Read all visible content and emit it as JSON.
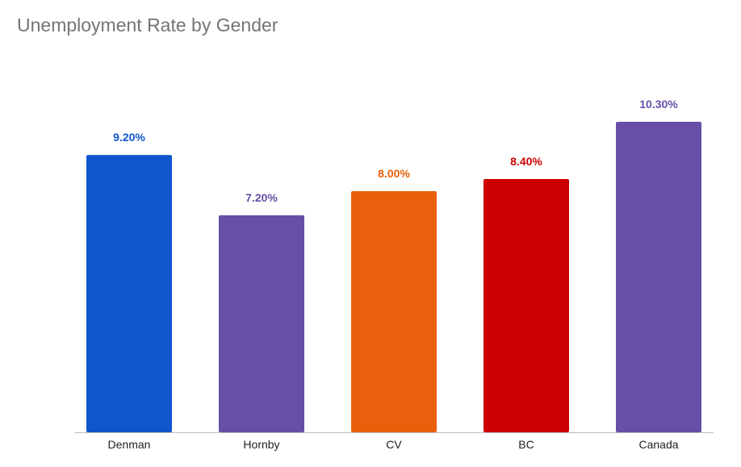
{
  "chart_data": {
    "type": "bar",
    "title": "Unemployment Rate by Gender",
    "xlabel": "",
    "ylabel": "",
    "categories": [
      "Denman",
      "Hornby",
      "CV",
      "BC",
      "Canada"
    ],
    "values": [
      9.2,
      7.2,
      8.0,
      8.4,
      10.3
    ],
    "data_labels": [
      "9.20%",
      "7.20%",
      "8.00%",
      "8.40%",
      "10.30%"
    ],
    "colors": [
      "#1155cc",
      "#674ea7",
      "#e8600b",
      "#cc0000",
      "#674ea7"
    ],
    "ylim": [
      0,
      10.3
    ],
    "grid": false,
    "legend": "none"
  }
}
